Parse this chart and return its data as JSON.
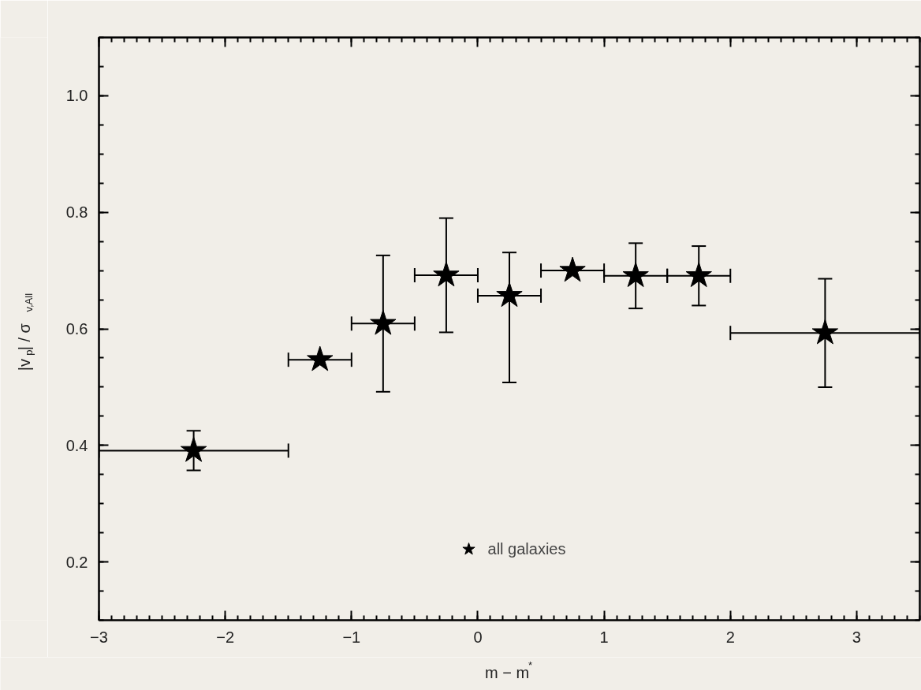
{
  "chart_data": {
    "type": "scatter",
    "xlabel": "m − m$^{*}$",
    "ylabel": "|v$_{p}$| / σ$_{v,All}$",
    "x": [
      -2.25,
      -1.25,
      -0.75,
      -0.25,
      0.25,
      0.75,
      1.25,
      1.75,
      2.75
    ],
    "series": [
      {
        "name": "all galaxies",
        "color": "#000000",
        "values": [
          0.391,
          0.547,
          0.609,
          0.692,
          0.657,
          0.7,
          0.691,
          0.691,
          0.593
        ],
        "errors": [
          [
            0.357,
            0.425
          ],
          null,
          [
            0.492,
            0.726
          ],
          [
            0.594,
            0.79
          ],
          [
            0.508,
            0.731
          ],
          null,
          [
            0.635,
            0.747
          ],
          [
            0.64,
            0.742
          ],
          [
            0.5,
            0.686
          ]
        ],
        "xerrors": [
          0.75,
          0.25,
          0.25,
          0.25,
          0.25,
          0.25,
          0.25,
          0.25,
          0.75
        ]
      }
    ],
    "marker": "star",
    "xlim": [
      -3,
      3.5
    ],
    "ylim": [
      0.1,
      1.1
    ],
    "xticks": [
      -3,
      -2,
      -1,
      0,
      1,
      2,
      3
    ],
    "yticks": [
      {
        "value": 0.2,
        "label": "0.2"
      },
      {
        "value": 0.4,
        "label": "0.4"
      },
      {
        "value": 0.6,
        "label": "0.6"
      },
      {
        "value": 0.8,
        "label": "0.8"
      },
      {
        "value": 1.0,
        "label": "1.0"
      }
    ],
    "grid": false,
    "legend": "bottom"
  }
}
